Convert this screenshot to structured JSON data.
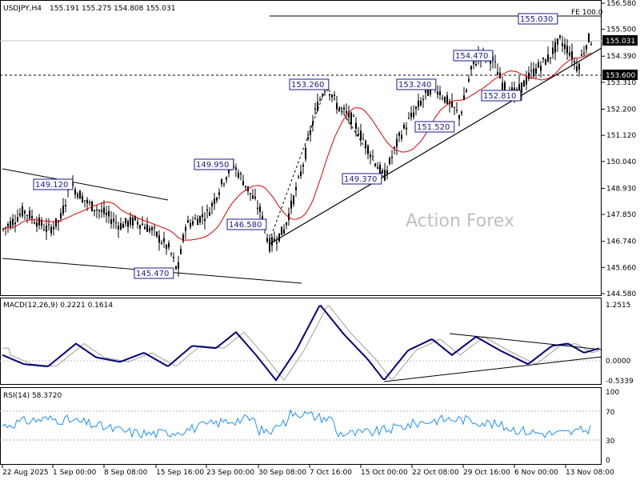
{
  "header": {
    "symbol_text": "USDJPY,H4",
    "ohlc_text": "155.191 155.275 154.808 155.031"
  },
  "watermark": "Action Forex",
  "fe_label": "FE 100.0",
  "price_panel": {
    "y_ticks": [
      "156.580",
      "155.500",
      "154.390",
      "153.310",
      "152.200",
      "151.120",
      "150.040",
      "148.930",
      "147.850",
      "146.740",
      "145.660",
      "144.580"
    ],
    "current_price_tag": "155.031",
    "support_tag": "153.600"
  },
  "macd_panel": {
    "title": "MACD(12,26,9) 0.2221 0.1614",
    "y_ticks": [
      "1.2515",
      "0.0000",
      "-0.5339"
    ],
    "zero_tag": "0.00"
  },
  "rsi_panel": {
    "title": "RSI(14) 58.3720",
    "y_ticks": [
      "100",
      "70",
      "30",
      "0"
    ]
  },
  "x_ticks": [
    "22 Aug 2025",
    "1 Sep 00:00",
    "8 Sep 08:00",
    "15 Sep 16:00",
    "23 Sep 00:00",
    "30 Sep 08:00",
    "7 Oct 16:00",
    "15 Oct 00:00",
    "22 Oct 08:00",
    "29 Oct 16:00",
    "6 Nov 00:00",
    "13 Nov 08:00"
  ],
  "chart_data": {
    "type": "line",
    "title": "USDJPY,H4",
    "series": [
      {
        "name": "USDJPY",
        "x": [
          "22 Aug 2025",
          "1 Sep 00:00",
          "8 Sep 08:00",
          "15 Sep 16:00",
          "23 Sep 00:00",
          "30 Sep 08:00",
          "7 Oct 16:00",
          "15 Oct 00:00",
          "22 Oct 08:00",
          "29 Oct 16:00",
          "6 Nov 00:00",
          "13 Nov 08:00"
        ],
        "values": [
          147.3,
          149.1,
          147.4,
          146.2,
          149.5,
          146.8,
          152.9,
          150.1,
          151.9,
          153.9,
          153.5,
          155.0
        ]
      }
    ],
    "annotations": [
      "149.120",
      "145.470",
      "149.950",
      "146.580",
      "153.260",
      "149.370",
      "153.240",
      "151.520",
      "154.470",
      "152.810",
      "155.030"
    ],
    "macd": {
      "value": 0.2221,
      "signal": 0.1614,
      "ylim": [
        -0.5339,
        1.2515
      ]
    },
    "rsi": {
      "value": 58.372,
      "levels": [
        70,
        30
      ],
      "ylim": [
        0,
        100
      ]
    },
    "ylim": [
      144.58,
      156.58
    ],
    "grid": false,
    "colors": {
      "price": "#000000",
      "ma": "#e00000",
      "macd": "#000080",
      "signal": "#a0a0a0",
      "rsi": "#1e90ff",
      "label_border": "#1a1a8c"
    }
  }
}
